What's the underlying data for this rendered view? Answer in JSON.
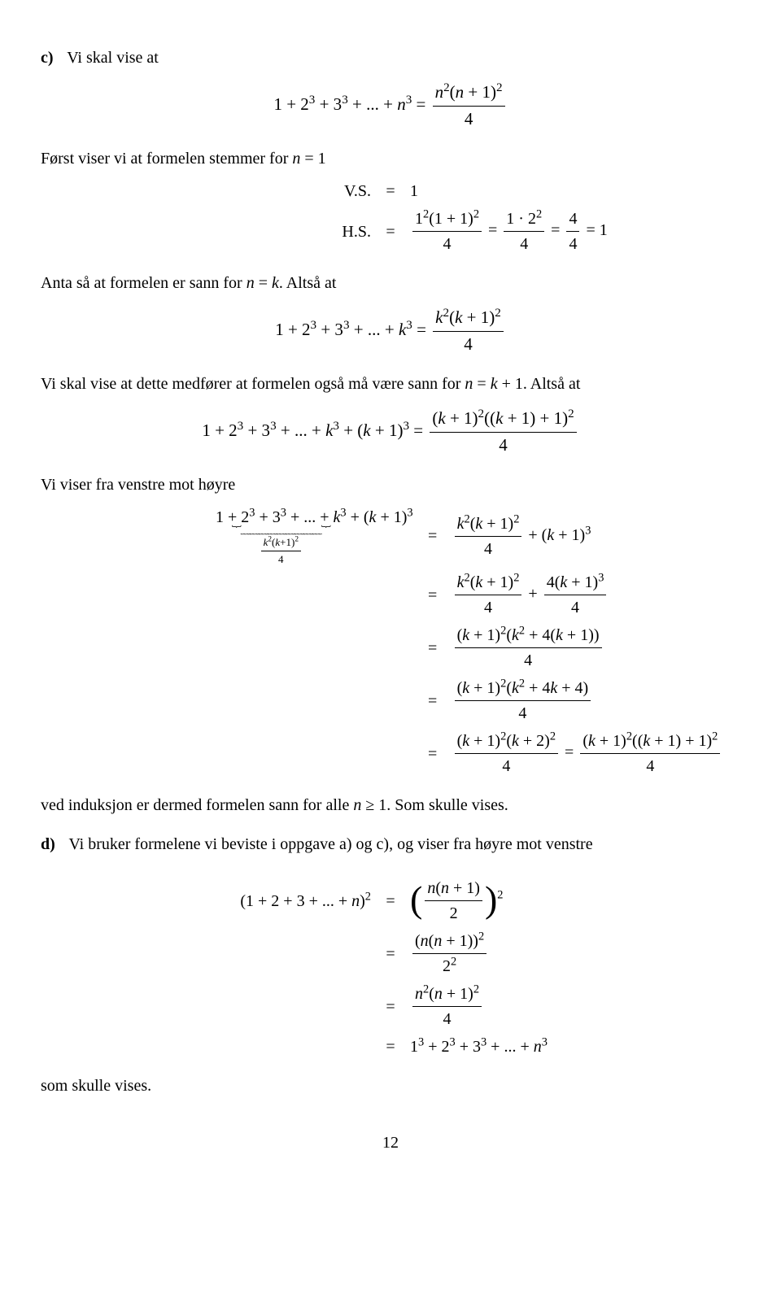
{
  "partC": {
    "label": "c)",
    "intro": "Vi skal vise at",
    "eq1_lhs": "1 + 2<sup>3</sup> + 3<sup>3</sup> + ... + <span class='it'>n</span><sup>3</sup> =",
    "eq1_frac_num": "<span class='it'>n</span><sup>2</sup>(<span class='it'>n</span> + 1)<sup>2</sup>",
    "eq1_frac_den": "4",
    "line2": "Først viser vi at formelen stemmer for <span class='it'>n</span> = 1",
    "vs_label": "V.S.",
    "vs_rhs": "1",
    "hs_label": "H.S.",
    "hs_f1_num": "1<sup>2</sup>(1 + 1)<sup>2</sup>",
    "hs_f1_den": "4",
    "hs_f2_num": "1 · 2<sup>2</sup>",
    "hs_f2_den": "4",
    "hs_f3_num": "4",
    "hs_f3_den": "4",
    "hs_tail": " = 1",
    "line3": "Anta så at formelen er sann for <span class='it'>n</span> = <span class='it'>k</span>. Altså at",
    "eq2_lhs": "1 + 2<sup>3</sup> + 3<sup>3</sup> + ... + <span class='it'>k</span><sup>3</sup> =",
    "eq2_frac_num": "<span class='it'>k</span><sup>2</sup>(<span class='it'>k</span> + 1)<sup>2</sup>",
    "eq2_frac_den": "4",
    "line4": "Vi skal vise at dette medfører at formelen også må være sann for <span class='it'>n</span> = <span class='it'>k</span> + 1. Altså at",
    "eq3_lhs": "1 + 2<sup>3</sup> + 3<sup>3</sup> + ... + <span class='it'>k</span><sup>3</sup> + (<span class='it'>k</span> + 1)<sup>3</sup> =",
    "eq3_frac_num": "(<span class='it'>k</span> + 1)<sup>2</sup>((<span class='it'>k</span> + 1) + 1)<sup>2</sup>",
    "eq3_frac_den": "4",
    "line5": "Vi viser fra venstre mot høyre",
    "ub_expr": "1 + 2<sup>3</sup> + 3<sup>3</sup> + ... + <span class='it'>k</span><sup>3</sup>",
    "ub_sub_num": "<span class='it'>k</span><sup>2</sup>(<span class='it'>k</span>+1)<sup>2</sup>",
    "ub_sub_den": "4",
    "ub_tail": " + (<span class='it'>k</span> + 1)<sup>3</sup>",
    "r1_num": "<span class='it'>k</span><sup>2</sup>(<span class='it'>k</span> + 1)<sup>2</sup>",
    "r1_den": "4",
    "r1_tail": " + (<span class='it'>k</span> + 1)<sup>3</sup>",
    "r2a_num": "<span class='it'>k</span><sup>2</sup>(<span class='it'>k</span> + 1)<sup>2</sup>",
    "r2a_den": "4",
    "r2b_num": "4(<span class='it'>k</span> + 1)<sup>3</sup>",
    "r2b_den": "4",
    "r3_num": "(<span class='it'>k</span> + 1)<sup>2</sup>(<span class='it'>k</span><sup>2</sup> + 4(<span class='it'>k</span> + 1))",
    "r3_den": "4",
    "r4_num": "(<span class='it'>k</span> + 1)<sup>2</sup>(<span class='it'>k</span><sup>2</sup> + 4<span class='it'>k</span> + 4)",
    "r4_den": "4",
    "r5a_num": "(<span class='it'>k</span> + 1)<sup>2</sup>(<span class='it'>k</span> + 2)<sup>2</sup>",
    "r5a_den": "4",
    "r5b_num": "(<span class='it'>k</span> + 1)<sup>2</sup>((<span class='it'>k</span> + 1) + 1)<sup>2</sup>",
    "r5b_den": "4",
    "line6": "ved induksjon er dermed formelen sann for alle <span class='it'>n</span> ≥ 1. Som skulle vises."
  },
  "partD": {
    "label": "d)",
    "intro": "Vi bruker formelene vi beviste i oppgave a) og c), og viser fra høyre mot venstre",
    "lhs": "(1 + 2 + 3 + ... + <span class='it'>n</span>)<sup>2</sup>",
    "r1_inner_num": "<span class='it'>n</span>(<span class='it'>n</span> + 1)",
    "r1_inner_den": "2",
    "r1_tail_sup": "2",
    "r2_num": "(<span class='it'>n</span>(<span class='it'>n</span> + 1))<sup>2</sup>",
    "r2_den": "2<sup>2</sup>",
    "r3_num": "<span class='it'>n</span><sup>2</sup>(<span class='it'>n</span> + 1)<sup>2</sup>",
    "r3_den": "4",
    "r4": "1<sup>3</sup> + 2<sup>3</sup> + 3<sup>3</sup> + ... + <span class='it'>n</span><sup>3</sup>",
    "closing": "som skulle vises."
  },
  "pagenum": "12"
}
